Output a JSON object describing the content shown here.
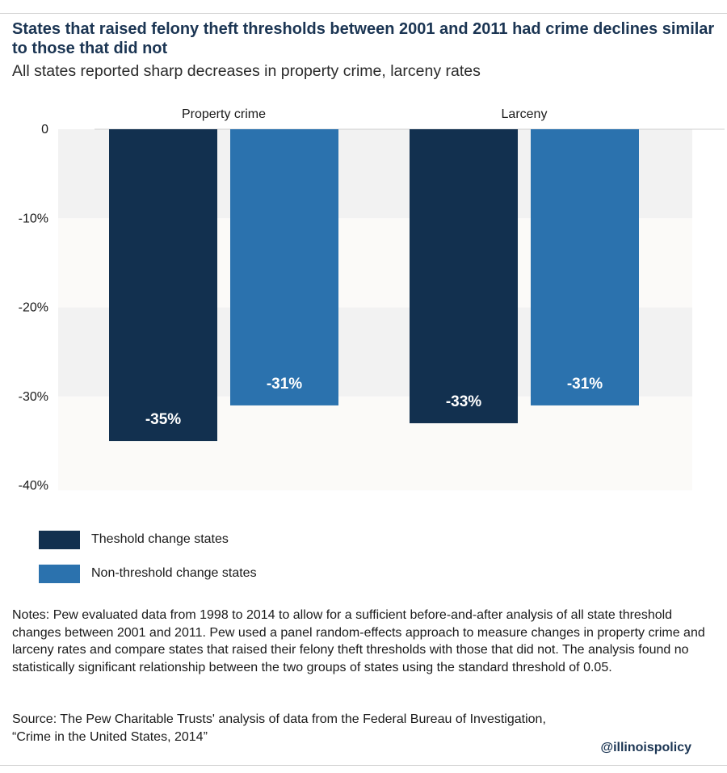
{
  "title": "States that raised felony theft thresholds between 2001 and 2011 had crime declines similar to those that did not",
  "subtitle": "All states reported sharp decreases in property crime, larceny rates",
  "legend": [
    {
      "label": "Theshold change states",
      "color": "#12304f"
    },
    {
      "label": "Non-threshold change states",
      "color": "#2b72ae"
    }
  ],
  "notes": "Notes: Pew evaluated data from 1998 to 2014 to allow for a sufficient before-and-after analysis of all state threshold changes between 2001 and 2011. Pew used a panel random-effects approach to measure changes in property crime and larceny rates and compare states that raised their felony theft thresholds with those that did not. The analysis found no statistically significant relationship between the two groups of states using the standard threshold of 0.05.",
  "source_line1": "Source: The Pew Charitable Trusts' analysis of data from the Federal Bureau of Investigation,",
  "source_line2": "“Crime in the United States, 2014”",
  "handle": "@illinoispolicy",
  "chart_data": {
    "type": "bar",
    "categories": [
      "Property crime",
      "Larceny"
    ],
    "series": [
      {
        "name": "Theshold change states",
        "values": [
          -35,
          -33
        ],
        "labels": [
          "-35%",
          "-33%"
        ],
        "color": "#12304f"
      },
      {
        "name": "Non-threshold change states",
        "values": [
          -31,
          -31
        ],
        "labels": [
          "-31%",
          "-31%"
        ],
        "color": "#2b72ae"
      }
    ],
    "y_ticks": [
      0,
      -10,
      -20,
      -30,
      -40
    ],
    "y_tick_labels": [
      "0",
      "-10%",
      "-20%",
      "-30%",
      "-40%"
    ],
    "ylim": [
      -40,
      0
    ],
    "band_colors": [
      "#f2f2f2",
      "#fbfaf8"
    ],
    "grid": false,
    "legend_position": "bottom-left"
  }
}
